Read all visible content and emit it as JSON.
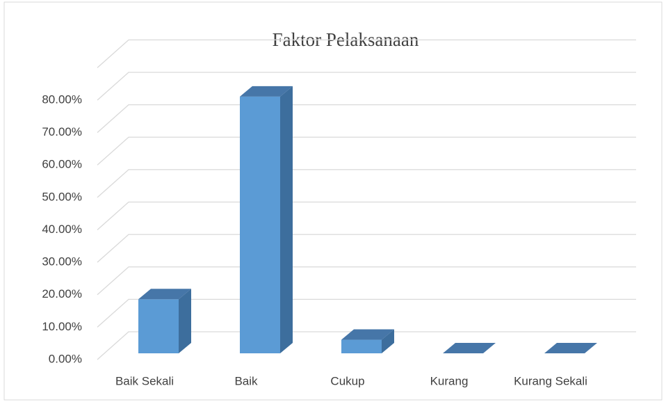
{
  "chart_data": {
    "type": "bar3d",
    "title": "Faktor Pelaksanaan",
    "categories": [
      "Baik Sekali",
      "Baik",
      "Cukup",
      "Kurang",
      "Kurang Sekali"
    ],
    "values": [
      16.67,
      79.17,
      4.17,
      0,
      0
    ],
    "color": "#5b9bd5",
    "ylim": [
      0,
      90
    ],
    "yticks": [
      {
        "value": 0,
        "label": "0.00%"
      },
      {
        "value": 10,
        "label": "10.00%"
      },
      {
        "value": 20,
        "label": "20.00%"
      },
      {
        "value": 30,
        "label": "30.00%"
      },
      {
        "value": 40,
        "label": "40.00%"
      },
      {
        "value": 50,
        "label": "50.00%"
      },
      {
        "value": 60,
        "label": "60.00%"
      },
      {
        "value": 70,
        "label": "70.00%"
      },
      {
        "value": 80,
        "label": "80.00%"
      }
    ],
    "grid": true
  }
}
